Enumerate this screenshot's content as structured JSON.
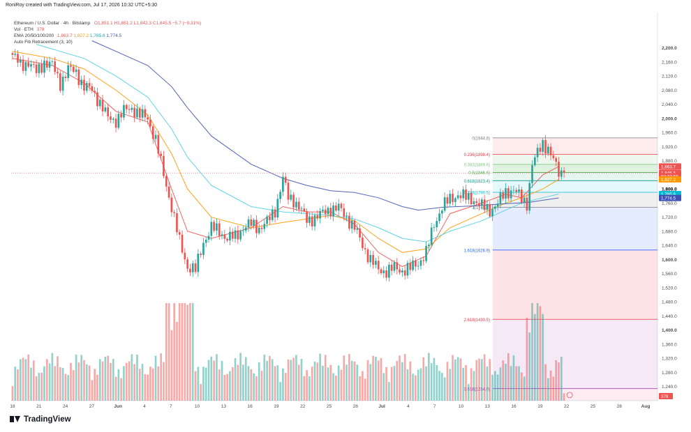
{
  "watermark": "RoniRoy created with TradingView.com, Jul 17, 2026 10:32 UTC+5:30",
  "legend": {
    "symbol_line": "Ethereum / U.S. Dollar · 4h · Bitstamp",
    "ohlc": {
      "o": "O1,851.1",
      "h": "H1,851.2",
      "l": "L1,842.3",
      "c": "C1,845.5",
      "chg": "−5.7 (−0.31%)"
    },
    "vol_label": "Vol · ETH",
    "vol_value": "378",
    "ema_label": "EMA 20/50/100/200",
    "ema_values": [
      "1,863.7",
      "1,827.2",
      "1,785.6",
      "1,774.5"
    ],
    "fib_label": "Auto Fib Retracement (3, 10)"
  },
  "footer_brand": "TradingView",
  "colors": {
    "up": "#26a69a",
    "down": "#ef5350",
    "ema20": "#ef5350",
    "ema50": "#ff9800",
    "ema100": "#4dd0e1",
    "ema200": "#3f51b5",
    "last_price": "#ef5350"
  },
  "chart_data": {
    "type": "candlestick",
    "symbol": "Ethereum / U.S. Dollar",
    "timeframe": "4h",
    "exchange": "Bitstamp",
    "ylim": [
      1200,
      2300
    ],
    "y_ticks": [
      2200,
      2160,
      2120,
      2080,
      2040,
      2000,
      1960,
      1920,
      1880,
      1840,
      1800,
      1760,
      1720,
      1680,
      1640,
      1600,
      1560,
      1520,
      1480,
      1440,
      1400,
      1360,
      1320,
      1280,
      1240
    ],
    "y_tick_labels": [
      "2,200.0",
      "2,160.0",
      "2,120.0",
      "2,080.0",
      "2,040.0",
      "2,000.0",
      "1,960.0",
      "1,920.0",
      "1,880.0",
      "1,840.0",
      "1,800.0",
      "1,760.0",
      "1,720.0",
      "1,680.0",
      "1,640.0",
      "1,600.0",
      "1,560.0",
      "1,520.0",
      "1,480.0",
      "1,440.0",
      "1,400.0",
      "1,360.0",
      "1,320.0",
      "1,280.0",
      "1,240.0"
    ],
    "x_ticks": [
      "18",
      "21",
      "24",
      "27",
      "Jun",
      "4",
      "7",
      "10",
      "13",
      "16",
      "19",
      "22",
      "25",
      "28",
      "Jul",
      "4",
      "7",
      "10",
      "13",
      "16",
      "19",
      "22",
      "25",
      "28",
      "Aug"
    ],
    "price_path": [
      [
        0,
        2180
      ],
      [
        3,
        2150
      ],
      [
        6,
        2160
      ],
      [
        9,
        2130
      ],
      [
        12,
        2160
      ],
      [
        15,
        2150
      ],
      [
        18,
        2100
      ],
      [
        21,
        2140
      ],
      [
        24,
        2130
      ],
      [
        27,
        2090
      ],
      [
        30,
        2080
      ],
      [
        33,
        2045
      ],
      [
        36,
        2000
      ],
      [
        39,
        1995
      ],
      [
        42,
        2020
      ],
      [
        45,
        2030
      ],
      [
        48,
        2010
      ],
      [
        51,
        2000
      ],
      [
        54,
        1940
      ],
      [
        57,
        1840
      ],
      [
        60,
        1750
      ],
      [
        63,
        1650
      ],
      [
        66,
        1580
      ],
      [
        69,
        1570
      ],
      [
        72,
        1650
      ],
      [
        75,
        1690
      ],
      [
        78,
        1680
      ],
      [
        81,
        1660
      ],
      [
        84,
        1665
      ],
      [
        87,
        1690
      ],
      [
        90,
        1700
      ],
      [
        93,
        1690
      ],
      [
        96,
        1705
      ],
      [
        99,
        1740
      ],
      [
        102,
        1830
      ],
      [
        104,
        1775
      ],
      [
        106,
        1770
      ],
      [
        108,
        1750
      ],
      [
        111,
        1710
      ],
      [
        114,
        1720
      ],
      [
        117,
        1730
      ],
      [
        120,
        1745
      ],
      [
        123,
        1745
      ],
      [
        126,
        1720
      ],
      [
        129,
        1690
      ],
      [
        132,
        1640
      ],
      [
        135,
        1600
      ],
      [
        138,
        1570
      ],
      [
        141,
        1568
      ],
      [
        144,
        1575
      ],
      [
        147,
        1570
      ],
      [
        150,
        1575
      ],
      [
        153,
        1590
      ],
      [
        156,
        1620
      ],
      [
        159,
        1700
      ],
      [
        162,
        1750
      ],
      [
        165,
        1770
      ],
      [
        168,
        1785
      ],
      [
        171,
        1775
      ],
      [
        174,
        1770
      ],
      [
        177,
        1750
      ],
      [
        180,
        1740
      ],
      [
        183,
        1760
      ],
      [
        186,
        1790
      ],
      [
        189,
        1800
      ],
      [
        192,
        1770
      ],
      [
        194,
        1760
      ],
      [
        196,
        1870
      ],
      [
        198,
        1900
      ],
      [
        200,
        1930
      ],
      [
        202,
        1915
      ],
      [
        204,
        1880
      ],
      [
        206,
        1845.5
      ]
    ],
    "volume_max": 40000,
    "volume_label_last": "378",
    "ema": [
      {
        "name": "EMA 20",
        "value": 1863.7,
        "color": "#ef5350",
        "path": [
          [
            0,
            2170
          ],
          [
            15,
            2150
          ],
          [
            27,
            2100
          ],
          [
            39,
            2020
          ],
          [
            51,
            1990
          ],
          [
            60,
            1800
          ],
          [
            66,
            1680
          ],
          [
            75,
            1660
          ],
          [
            90,
            1690
          ],
          [
            102,
            1750
          ],
          [
            111,
            1735
          ],
          [
            120,
            1735
          ],
          [
            129,
            1700
          ],
          [
            138,
            1620
          ],
          [
            147,
            1580
          ],
          [
            156,
            1610
          ],
          [
            165,
            1730
          ],
          [
            177,
            1760
          ],
          [
            186,
            1785
          ],
          [
            192,
            1775
          ],
          [
            200,
            1840
          ],
          [
            206,
            1863.7
          ]
        ]
      },
      {
        "name": "EMA 50",
        "value": 1827.2,
        "color": "#ff9800",
        "path": [
          [
            0,
            2190
          ],
          [
            15,
            2170
          ],
          [
            27,
            2140
          ],
          [
            39,
            2080
          ],
          [
            51,
            2010
          ],
          [
            60,
            1900
          ],
          [
            66,
            1800
          ],
          [
            75,
            1720
          ],
          [
            90,
            1690
          ],
          [
            102,
            1705
          ],
          [
            111,
            1715
          ],
          [
            120,
            1725
          ],
          [
            129,
            1710
          ],
          [
            138,
            1660
          ],
          [
            147,
            1620
          ],
          [
            156,
            1630
          ],
          [
            165,
            1690
          ],
          [
            177,
            1730
          ],
          [
            186,
            1760
          ],
          [
            192,
            1775
          ],
          [
            200,
            1800
          ],
          [
            206,
            1827.2
          ]
        ]
      },
      {
        "name": "EMA 100",
        "value": 1785.6,
        "color": "#4dd0e1",
        "path": [
          [
            9,
            2210
          ],
          [
            27,
            2170
          ],
          [
            39,
            2120
          ],
          [
            51,
            2060
          ],
          [
            60,
            1970
          ],
          [
            66,
            1890
          ],
          [
            75,
            1810
          ],
          [
            90,
            1750
          ],
          [
            102,
            1735
          ],
          [
            111,
            1730
          ],
          [
            120,
            1725
          ],
          [
            129,
            1715
          ],
          [
            138,
            1690
          ],
          [
            147,
            1660
          ],
          [
            156,
            1650
          ],
          [
            165,
            1680
          ],
          [
            177,
            1710
          ],
          [
            186,
            1740
          ],
          [
            192,
            1760
          ],
          [
            200,
            1775
          ],
          [
            206,
            1785.6
          ]
        ]
      },
      {
        "name": "EMA 200",
        "value": 1774.5,
        "color": "#3f51b5",
        "path": [
          [
            30,
            2220
          ],
          [
            39,
            2190
          ],
          [
            51,
            2150
          ],
          [
            60,
            2090
          ],
          [
            66,
            2030
          ],
          [
            75,
            1950
          ],
          [
            90,
            1870
          ],
          [
            102,
            1830
          ],
          [
            111,
            1810
          ],
          [
            120,
            1795
          ],
          [
            129,
            1790
          ],
          [
            138,
            1775
          ],
          [
            147,
            1750
          ],
          [
            153,
            1740
          ],
          [
            162,
            1748
          ],
          [
            174,
            1752
          ],
          [
            186,
            1758
          ],
          [
            195,
            1762
          ],
          [
            200,
            1768
          ],
          [
            206,
            1774.5
          ]
        ]
      }
    ],
    "fib_levels": [
      {
        "label": "0(1944.8)",
        "value": 1944.8,
        "color": "#787b86",
        "fill": "rgba(242,54,69,0.10)"
      },
      {
        "label": "0.236(1898.4)",
        "value": 1898.4,
        "color": "#f23645",
        "fill": "rgba(76,175,80,0.10)"
      },
      {
        "label": "0.382(1869.6)",
        "value": 1869.6,
        "color": "#81c784",
        "fill": "rgba(76,175,80,0.18)"
      },
      {
        "label": "0.5(1846.6)",
        "value": 1846.6,
        "color": "#4caf50",
        "fill": "rgba(8,153,129,0.10)"
      },
      {
        "label": "0.618(1823.4)",
        "value": 1823.4,
        "color": "#089981",
        "fill": "rgba(0,188,212,0.10)"
      },
      {
        "label": "0.786(1790.5)",
        "value": 1790.5,
        "color": "#00bcd4",
        "fill": "rgba(120,123,134,0.12)"
      },
      {
        "label": "1(1748.3)",
        "value": 1748.3,
        "color": "#787b86",
        "fill": "rgba(41,98,255,0.12)"
      },
      {
        "label": "1.618(1626.9)",
        "value": 1626.9,
        "color": "#2962ff",
        "fill": "rgba(242,54,69,0.14)"
      },
      {
        "label": "2.618(1430.5)",
        "value": 1430.5,
        "color": "#f23645",
        "fill": "rgba(156,39,176,0.10)"
      },
      {
        "label": "3.618(1234.0)",
        "value": 1234.0,
        "color": "#9c27b0",
        "fill": "rgba(233,30,99,0.08)"
      }
    ],
    "price_badges": [
      {
        "label": "1,863.7",
        "value": 1863.7,
        "color": "#ef5350"
      },
      {
        "label": "1,845.5",
        "value": 1845.5,
        "color": "#ef5350"
      },
      {
        "label": "02:27:59",
        "value": 1836,
        "color": "#ef5350"
      },
      {
        "label": "1,827.2",
        "value": 1827.2,
        "color": "#ff9800"
      },
      {
        "label": "1,800.0",
        "value": 1800,
        "color": "#131722",
        "plain": true
      },
      {
        "label": "1,785.6",
        "value": 1785.6,
        "color": "#00bcd4"
      },
      {
        "label": "1,774.5",
        "value": 1774.5,
        "color": "#3f51b5"
      }
    ]
  }
}
